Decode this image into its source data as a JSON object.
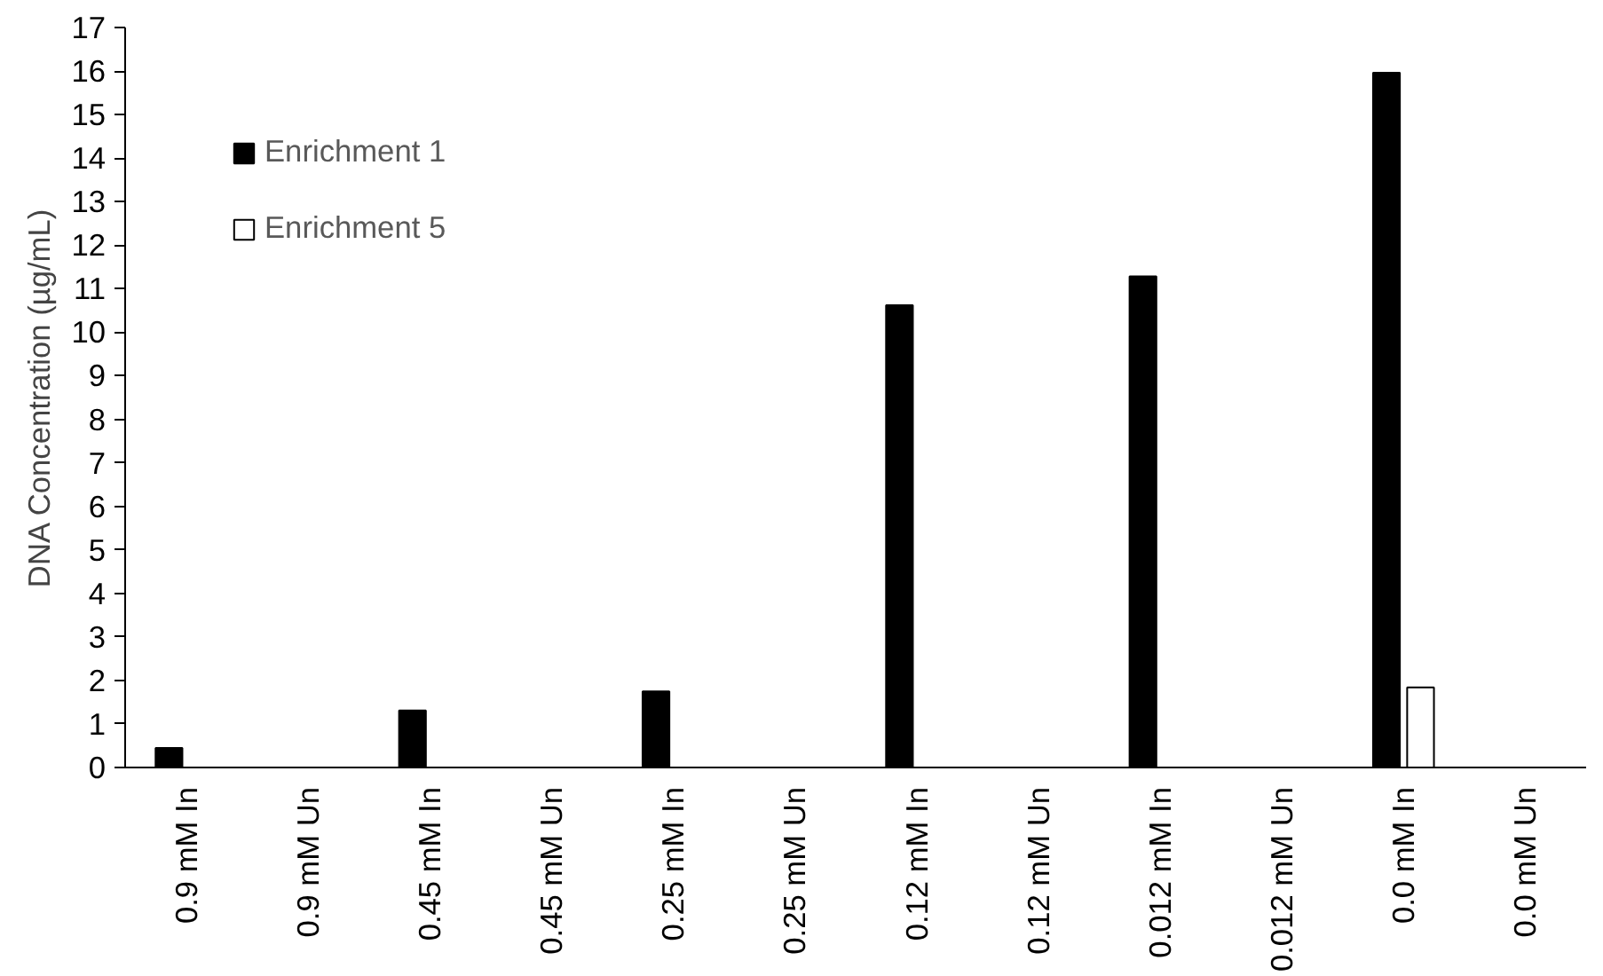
{
  "chart_data": {
    "type": "bar",
    "ylabel": "DNA Concentration (µg/mL)",
    "categories": [
      "0.9 mM In",
      "0.9 mM Un",
      "0.45 mM In",
      "0.45 mM Un",
      "0.25 mM In",
      "0.25 mM Un",
      "0.12 mM In",
      "0.12 mM Un",
      "0.012 mM In",
      "0.012 mM Un",
      "0.0 mM In",
      "0.0 mM Un"
    ],
    "series": [
      {
        "name": "Enrichment 1",
        "color": "#000000",
        "values": [
          0.45,
          null,
          1.31,
          null,
          1.75,
          null,
          10.62,
          null,
          11.28,
          null,
          15.96,
          null
        ]
      },
      {
        "name": "Enrichment 5",
        "color": "#ffffff",
        "values": [
          null,
          null,
          null,
          null,
          null,
          null,
          null,
          null,
          null,
          null,
          1.84,
          null
        ]
      }
    ],
    "ylim": [
      0,
      17
    ],
    "yticks": [
      0,
      1,
      2,
      3,
      4,
      5,
      6,
      7,
      8,
      9,
      10,
      11,
      12,
      13,
      14,
      15,
      16,
      17
    ],
    "grid": false,
    "legend": "top left"
  }
}
